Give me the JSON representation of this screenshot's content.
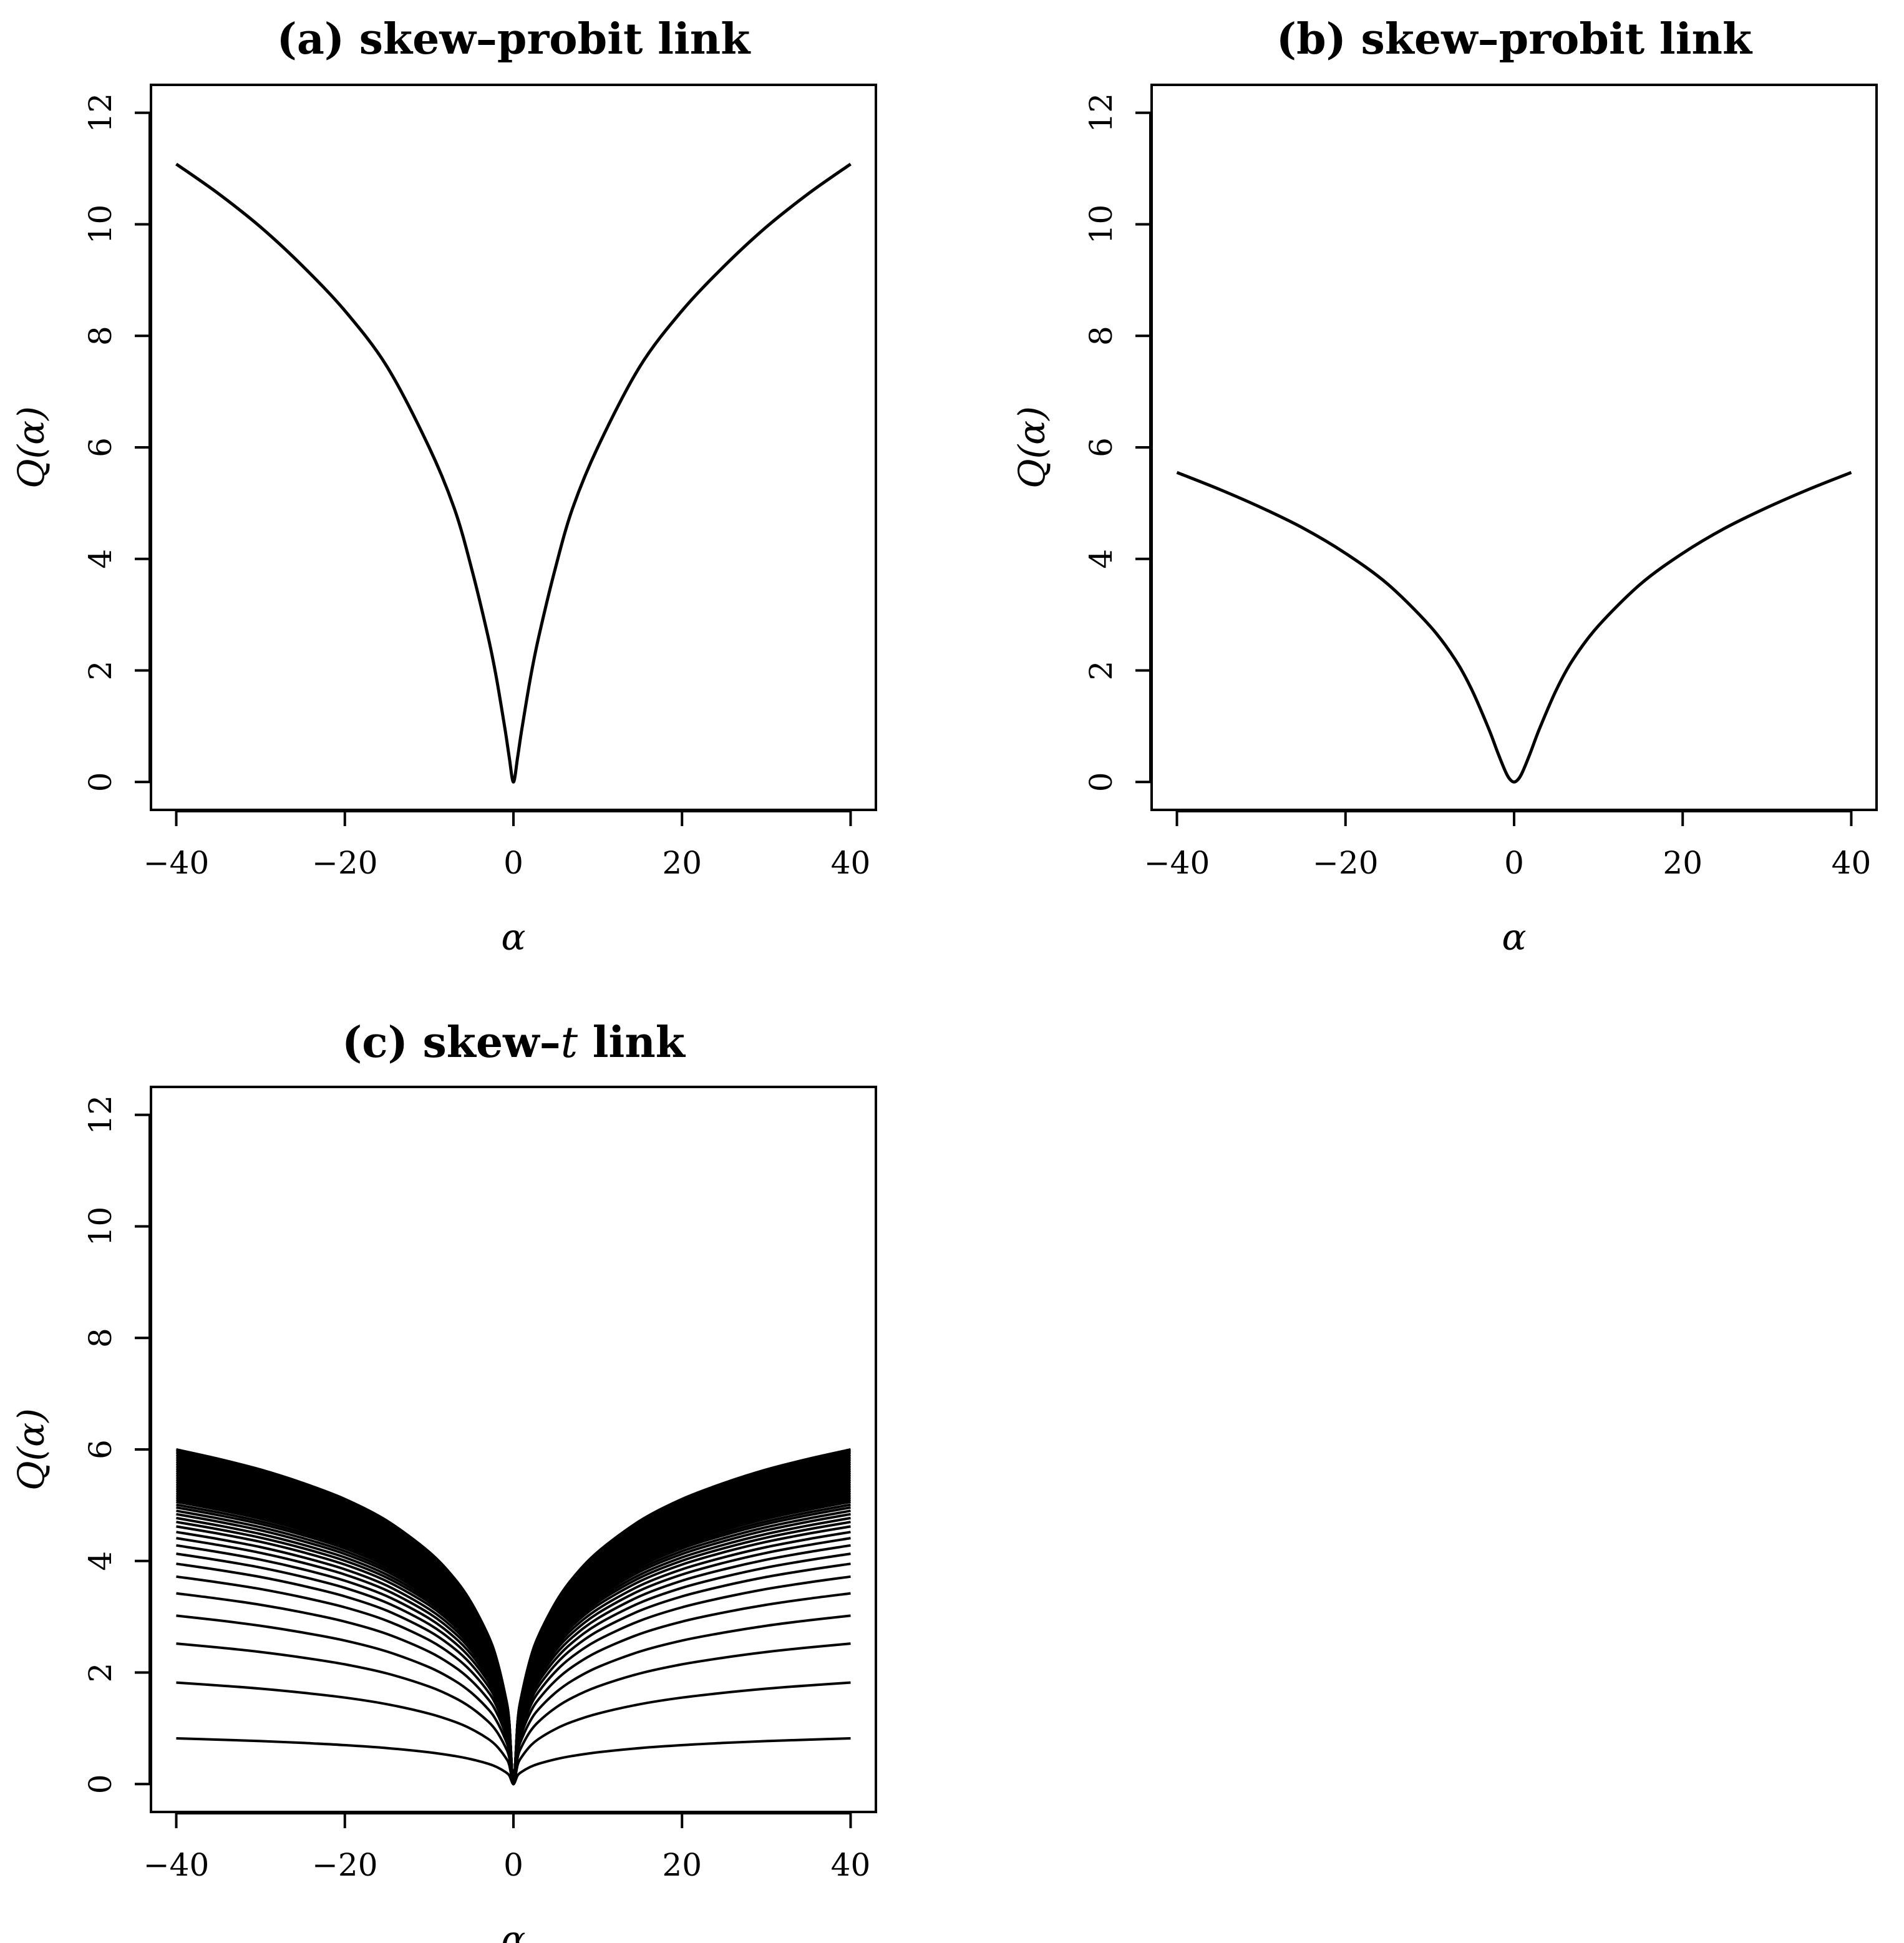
{
  "chart_data": [
    {
      "id": "a",
      "type": "line",
      "title": "(a) skew–probit link",
      "title_parts": [
        {
          "text": "(a) skew–probit link",
          "italic": false
        }
      ],
      "xlabel": "α",
      "ylabel": "Q(α)",
      "xlim": [
        -43,
        43
      ],
      "ylim": [
        -0.5,
        12.5
      ],
      "xticks": [
        -40,
        -20,
        0,
        20,
        40
      ],
      "xtick_labels": [
        "−40",
        "−20",
        "0",
        "20",
        "40"
      ],
      "yticks": [
        0,
        2,
        4,
        6,
        8,
        10,
        12
      ],
      "ytick_labels": [
        "0",
        "2",
        "4",
        "6",
        "8",
        "10",
        "12"
      ],
      "grid": false,
      "series": [
        {
          "x": [
            -40,
            -35,
            -30,
            -25,
            -20,
            -15,
            -10,
            -7,
            -5,
            -3,
            -2,
            -1,
            -0.5,
            0,
            0.5,
            1,
            2,
            3,
            5,
            7,
            10,
            15,
            20,
            25,
            30,
            35,
            40
          ],
          "y": [
            11.08,
            10.55,
            9.95,
            9.25,
            8.45,
            7.45,
            6.0,
            4.9,
            3.85,
            2.6,
            1.85,
            0.95,
            0.45,
            0.0,
            0.45,
            0.95,
            1.85,
            2.6,
            3.85,
            4.9,
            6.0,
            7.45,
            8.45,
            9.25,
            9.95,
            10.55,
            11.08
          ]
        }
      ]
    },
    {
      "id": "b",
      "type": "line",
      "title": "(b) skew–probit link",
      "title_parts": [
        {
          "text": "(b) skew–probit link",
          "italic": false
        }
      ],
      "xlabel": "α",
      "ylabel": "Q(α)",
      "xlim": [
        -43,
        43
      ],
      "ylim": [
        -0.5,
        12.5
      ],
      "xticks": [
        -40,
        -20,
        0,
        20,
        40
      ],
      "xtick_labels": [
        "−40",
        "−20",
        "0",
        "20",
        "40"
      ],
      "yticks": [
        0,
        2,
        4,
        6,
        8,
        10,
        12
      ],
      "ytick_labels": [
        "0",
        "2",
        "4",
        "6",
        "8",
        "10",
        "12"
      ],
      "grid": false,
      "series": [
        {
          "x": [
            -40,
            -35,
            -30,
            -25,
            -20,
            -15,
            -10,
            -7,
            -5,
            -3,
            -2,
            -1,
            -0.5,
            0,
            0.5,
            1,
            2,
            3,
            5,
            7,
            10,
            15,
            20,
            25,
            30,
            35,
            40
          ],
          "y": [
            5.55,
            5.25,
            4.92,
            4.55,
            4.1,
            3.55,
            2.8,
            2.2,
            1.65,
            0.95,
            0.55,
            0.18,
            0.05,
            0.0,
            0.05,
            0.18,
            0.55,
            0.95,
            1.65,
            2.2,
            2.8,
            3.55,
            4.1,
            4.55,
            4.92,
            5.25,
            5.55
          ]
        }
      ]
    },
    {
      "id": "c",
      "type": "line",
      "title": "(c) skew–t link",
      "title_parts": [
        {
          "text": "(c) skew–",
          "italic": false
        },
        {
          "text": "t",
          "italic": true
        },
        {
          "text": " link",
          "italic": false
        }
      ],
      "xlabel": "α",
      "ylabel": "Q(α)",
      "xlim": [
        -43,
        43
      ],
      "ylim": [
        -0.5,
        12.5
      ],
      "xticks": [
        -40,
        -20,
        0,
        20,
        40
      ],
      "xtick_labels": [
        "−40",
        "−20",
        "0",
        "20",
        "40"
      ],
      "yticks": [
        0,
        2,
        4,
        6,
        8,
        10,
        12
      ],
      "ytick_labels": [
        "0",
        "2",
        "4",
        "6",
        "8",
        "10",
        "12"
      ],
      "grid": false,
      "family": {
        "x": [
          -40,
          -35,
          -30,
          -25,
          -20,
          -15,
          -10,
          -7,
          -5,
          -3,
          -2,
          -1,
          -0.5,
          0,
          0.5,
          1,
          2,
          3,
          5,
          7,
          10,
          15,
          20,
          25,
          30,
          35,
          40
        ],
        "shape": [
          1.0,
          0.972,
          0.94,
          0.9,
          0.852,
          0.787,
          0.694,
          0.615,
          0.543,
          0.445,
          0.375,
          0.27,
          0.19,
          0.0,
          0.19,
          0.27,
          0.375,
          0.445,
          0.543,
          0.615,
          0.694,
          0.787,
          0.852,
          0.9,
          0.94,
          0.972,
          1.0
        ],
        "endpoint_values": [
          0.82,
          1.82,
          2.52,
          3.02,
          3.42,
          3.72,
          3.95,
          4.13,
          4.28,
          4.41,
          4.52,
          4.62,
          4.7,
          4.77,
          4.84,
          4.9,
          4.96,
          5.01,
          5.06,
          5.1,
          5.14,
          5.18,
          5.22,
          5.26,
          5.3,
          5.34,
          5.38,
          5.42,
          5.46,
          5.5,
          5.54,
          5.58,
          5.62,
          5.66,
          5.7,
          5.74,
          5.78,
          5.82,
          5.86,
          5.9,
          5.94,
          5.97,
          6.0
        ]
      }
    }
  ]
}
